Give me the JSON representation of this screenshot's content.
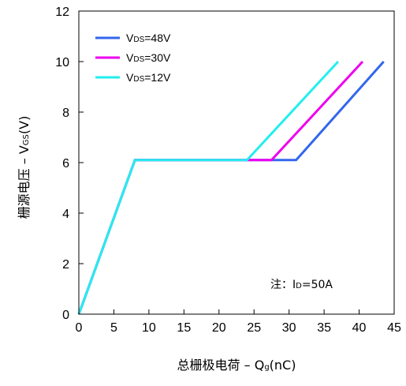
{
  "chart_data": {
    "type": "line",
    "xlabel": "总栅极电荷 – Qg(nC)",
    "xlabel_parts": {
      "main": "总栅极电荷  –  Q",
      "sub": "g",
      "tail": "(nC)"
    },
    "ylabel": "栅源电压 – VGS(V)",
    "ylabel_parts": {
      "main": "栅源电压  –  V",
      "sub": "GS",
      "tail": "(V)"
    },
    "xlim": [
      0,
      45
    ],
    "ylim": [
      0,
      12
    ],
    "xticks": [
      0,
      5,
      10,
      15,
      20,
      25,
      30,
      35,
      40,
      45
    ],
    "yticks": [
      0,
      2,
      4,
      6,
      8,
      10,
      12
    ],
    "grid": false,
    "legend_position": "top-left",
    "series": [
      {
        "name": "VDS=48V",
        "label_pre": "V",
        "label_sub": "DS",
        "label_post": "=48V",
        "color": "#3366ee",
        "x": [
          0,
          8,
          31,
          43.5
        ],
        "y": [
          0,
          6.1,
          6.1,
          10
        ]
      },
      {
        "name": "VDS=30V",
        "label_pre": "V",
        "label_sub": "DS",
        "label_post": "=30V",
        "color": "#ee00ee",
        "x": [
          0,
          8,
          27.5,
          40.5
        ],
        "y": [
          0,
          6.1,
          6.1,
          10
        ]
      },
      {
        "name": "VDS=12V",
        "label_pre": "V",
        "label_sub": "DS",
        "label_post": "=12V",
        "color": "#22eeee",
        "x": [
          0,
          8,
          24,
          37
        ],
        "y": [
          0,
          6.1,
          6.1,
          10
        ]
      }
    ],
    "annotation": {
      "pre": "注：I",
      "sub": "D",
      "post": "=50A"
    }
  }
}
